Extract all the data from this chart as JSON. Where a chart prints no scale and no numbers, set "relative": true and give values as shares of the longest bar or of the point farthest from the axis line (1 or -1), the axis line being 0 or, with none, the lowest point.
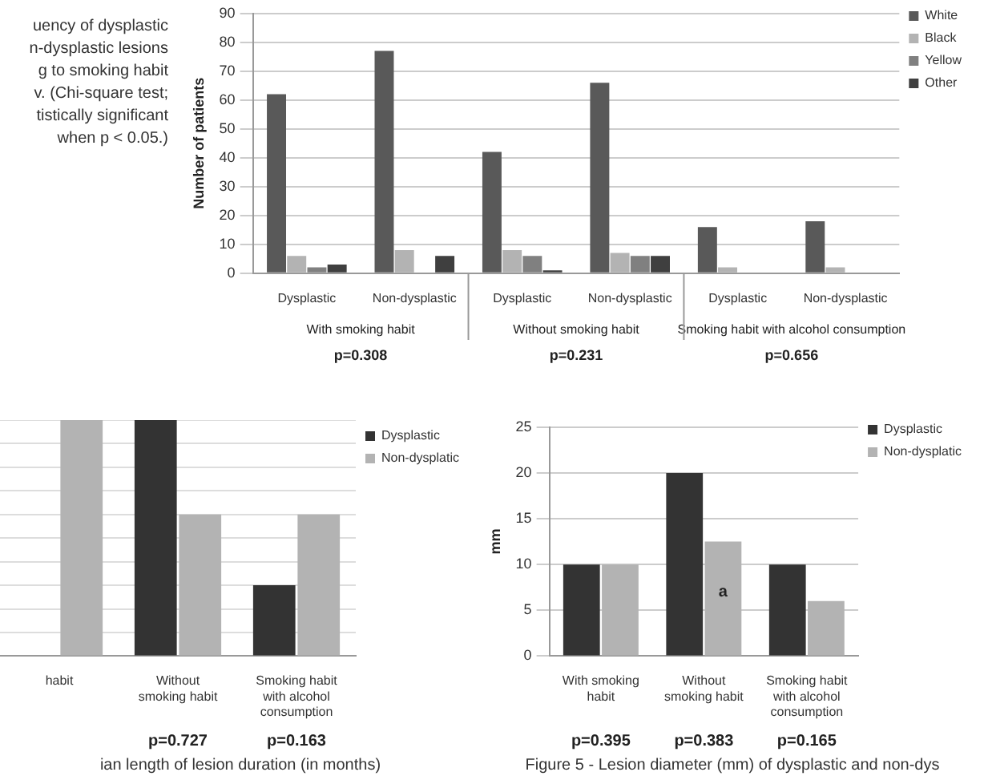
{
  "chart_data": [
    {
      "type": "bar",
      "ylabel": "Number of patients",
      "categories": [
        "Dysplastic",
        "Non-dysplastic",
        "Dysplastic",
        "Non-dysplastic",
        "Dysplastic",
        "Non-dysplastic"
      ],
      "series": [
        {
          "name": "White",
          "color": "#595959",
          "values": [
            62,
            77,
            42,
            66,
            16,
            18
          ]
        },
        {
          "name": "Black",
          "color": "#b3b3b3",
          "values": [
            6,
            8,
            8,
            7,
            2,
            2
          ]
        },
        {
          "name": "Yellow",
          "color": "#808080",
          "values": [
            2,
            0,
            6,
            6,
            0,
            0
          ]
        },
        {
          "name": "Other",
          "color": "#3f3f3f",
          "values": [
            3,
            6,
            1,
            6,
            0,
            0
          ]
        }
      ],
      "ylim": [
        0,
        90
      ],
      "yticks": [
        0,
        10,
        20,
        30,
        40,
        50,
        60,
        70,
        80,
        90
      ],
      "grid": "y",
      "legend": "top right",
      "annotations": [
        "uency of dysplastic\nn-dysplastic lesions\ng to smoking habit\nv. (Chi-square test;\ntistically significant\nwhen p < 0.05.)",
        "With smoking habit",
        "Without smoking habit",
        "Smoking habit with alcohol consumption",
        "p=0.308",
        "p=0.231",
        "p=0.656"
      ]
    },
    {
      "type": "bar",
      "relative": true,
      "categories": [
        "habit",
        "Without smoking habit",
        "Smoking habit with alcohol consumption"
      ],
      "series": [
        {
          "name": "Dysplastic",
          "color": "#333333",
          "values": [
            null,
            1,
            0.3
          ]
        },
        {
          "name": "Non-dysplatic",
          "color": "#b3b3b3",
          "values": [
            1,
            0.6,
            0.6
          ]
        }
      ],
      "legend": "top right",
      "annotations": [
        "p=0.727",
        "p=0.163",
        "ian length of lesion duration (in months)"
      ]
    },
    {
      "type": "bar",
      "ylabel": "mm",
      "categories": [
        "With smoking habit",
        "Without smoking habit",
        "Smoking habit with alcohol consumption"
      ],
      "series": [
        {
          "name": "Dysplastic",
          "color": "#333333",
          "values": [
            10,
            20,
            10
          ]
        },
        {
          "name": "Non-dysplatic",
          "color": "#b3b3b3",
          "values": [
            10,
            12.5,
            6
          ]
        }
      ],
      "ylim": [
        0,
        25
      ],
      "yticks": [
        0,
        5,
        10,
        15,
        20,
        25
      ],
      "grid": "y",
      "legend": "top right",
      "annotations": [
        "p=0.395",
        "p=0.383",
        "p=0.165",
        {
          "text": "a",
          "x": "Without smoking habit",
          "y": 7
        },
        "Figure 5 - Lesion diameter (mm) of dysplastic and non-dys"
      ]
    }
  ]
}
